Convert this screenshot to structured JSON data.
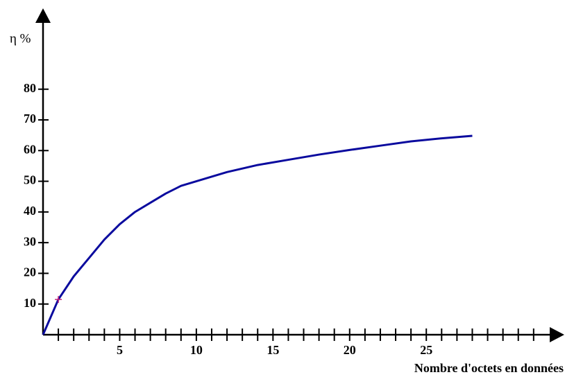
{
  "chart_data": {
    "type": "line",
    "y_label": "η %",
    "x_label": "Nombre d'octets en données",
    "x": [
      0,
      1,
      2,
      3,
      4,
      5,
      6,
      7,
      8,
      9,
      10,
      12,
      14,
      16,
      18,
      20,
      22,
      24,
      26,
      28
    ],
    "series": [
      {
        "color": "#0a0a9e",
        "values": [
          0,
          11.5,
          19,
          25,
          31,
          36,
          40,
          43,
          46,
          48.5,
          50,
          53,
          55.3,
          57,
          58.7,
          60.2,
          61.6,
          63,
          64,
          64.8
        ]
      }
    ],
    "highlight": {
      "x": 1,
      "y": 11.5,
      "color": "#c0207a"
    },
    "xlim": [
      0,
      34
    ],
    "ylim": [
      0,
      105
    ],
    "xticks": [
      5,
      10,
      15,
      20,
      25
    ],
    "xminorticks": [
      1,
      2,
      3,
      4,
      5,
      6,
      7,
      8,
      9,
      10,
      11,
      12,
      13,
      14,
      15,
      16,
      17,
      18,
      19,
      20,
      21,
      22,
      23,
      24,
      25,
      26,
      27,
      28,
      29,
      30,
      31,
      32
    ],
    "yticks": [
      10,
      20,
      30,
      40,
      50,
      60,
      70,
      80
    ]
  }
}
